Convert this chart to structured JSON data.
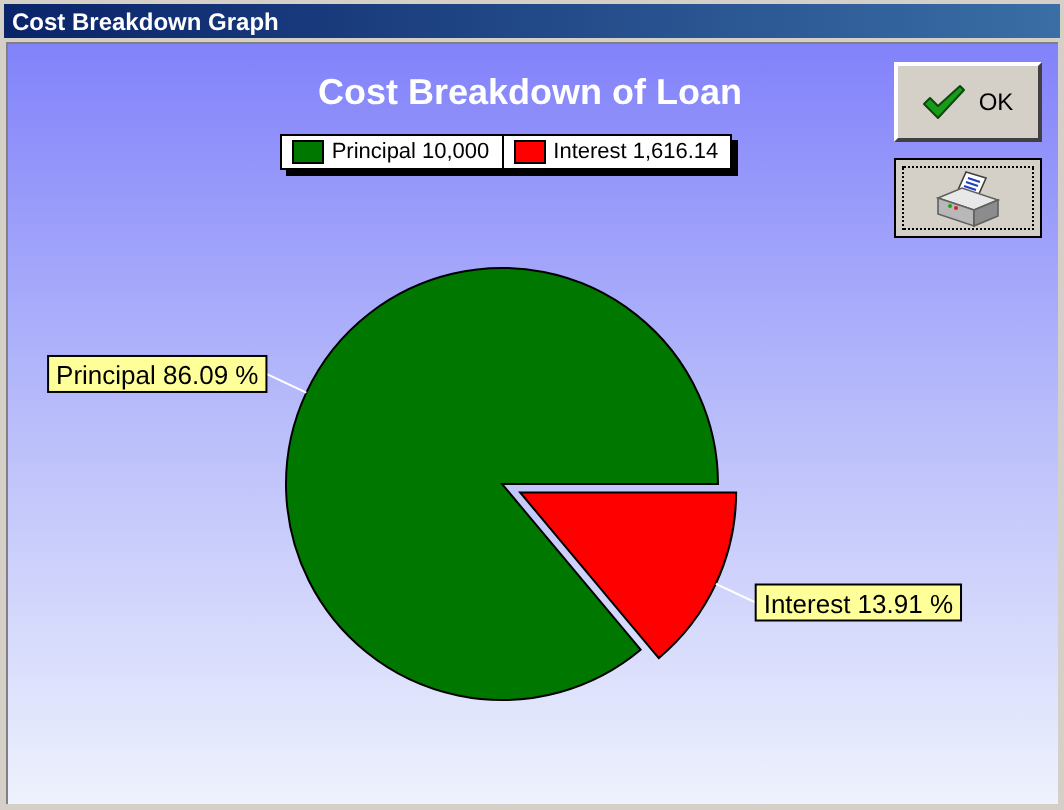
{
  "chart_data": {
    "type": "pie",
    "title": "Cost Breakdown of Loan",
    "categories": [
      "Principal",
      "Interest"
    ],
    "values": [
      86.09,
      13.91
    ],
    "colors": [
      "#007800",
      "#ff0000"
    ],
    "value_labels": [
      "86.09 %",
      "13.91 %"
    ],
    "legend": "top",
    "annotations": [
      "Cost Breakdown Graph",
      "OK",
      "10,000",
      "1,616.14"
    ]
  }
}
